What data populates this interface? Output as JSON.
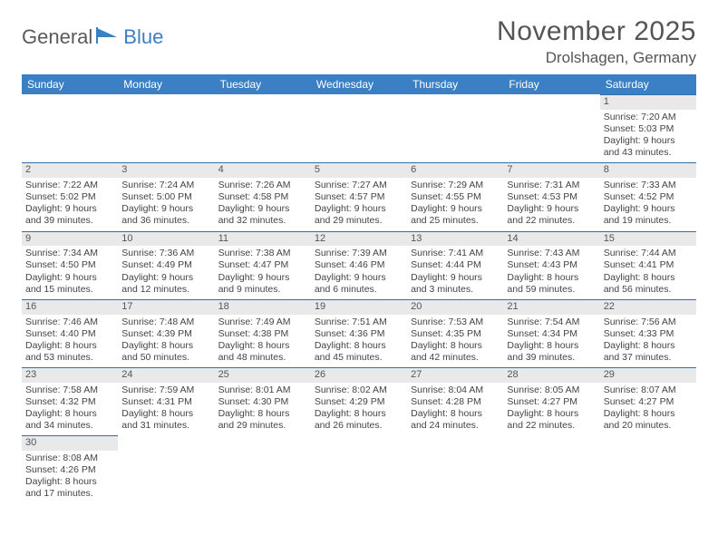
{
  "logo": {
    "text1": "General",
    "text2": "Blue"
  },
  "header": {
    "monthTitle": "November 2025",
    "location": "Drolshagen, Germany"
  },
  "colors": {
    "headerBg": "#3b7fc4",
    "headerText": "#ffffff",
    "dayBarBg": "#e9e9e9",
    "dayBarBorder": "#2f6fb0",
    "bodyText": "#444444",
    "pageBg": "#ffffff"
  },
  "dayNames": [
    "Sunday",
    "Monday",
    "Tuesday",
    "Wednesday",
    "Thursday",
    "Friday",
    "Saturday"
  ],
  "weeks": [
    [
      null,
      null,
      null,
      null,
      null,
      null,
      {
        "n": "1",
        "sr": "Sunrise: 7:20 AM",
        "ss": "Sunset: 5:03 PM",
        "d1": "Daylight: 9 hours",
        "d2": "and 43 minutes."
      }
    ],
    [
      {
        "n": "2",
        "sr": "Sunrise: 7:22 AM",
        "ss": "Sunset: 5:02 PM",
        "d1": "Daylight: 9 hours",
        "d2": "and 39 minutes."
      },
      {
        "n": "3",
        "sr": "Sunrise: 7:24 AM",
        "ss": "Sunset: 5:00 PM",
        "d1": "Daylight: 9 hours",
        "d2": "and 36 minutes."
      },
      {
        "n": "4",
        "sr": "Sunrise: 7:26 AM",
        "ss": "Sunset: 4:58 PM",
        "d1": "Daylight: 9 hours",
        "d2": "and 32 minutes."
      },
      {
        "n": "5",
        "sr": "Sunrise: 7:27 AM",
        "ss": "Sunset: 4:57 PM",
        "d1": "Daylight: 9 hours",
        "d2": "and 29 minutes."
      },
      {
        "n": "6",
        "sr": "Sunrise: 7:29 AM",
        "ss": "Sunset: 4:55 PM",
        "d1": "Daylight: 9 hours",
        "d2": "and 25 minutes."
      },
      {
        "n": "7",
        "sr": "Sunrise: 7:31 AM",
        "ss": "Sunset: 4:53 PM",
        "d1": "Daylight: 9 hours",
        "d2": "and 22 minutes."
      },
      {
        "n": "8",
        "sr": "Sunrise: 7:33 AM",
        "ss": "Sunset: 4:52 PM",
        "d1": "Daylight: 9 hours",
        "d2": "and 19 minutes."
      }
    ],
    [
      {
        "n": "9",
        "sr": "Sunrise: 7:34 AM",
        "ss": "Sunset: 4:50 PM",
        "d1": "Daylight: 9 hours",
        "d2": "and 15 minutes."
      },
      {
        "n": "10",
        "sr": "Sunrise: 7:36 AM",
        "ss": "Sunset: 4:49 PM",
        "d1": "Daylight: 9 hours",
        "d2": "and 12 minutes."
      },
      {
        "n": "11",
        "sr": "Sunrise: 7:38 AM",
        "ss": "Sunset: 4:47 PM",
        "d1": "Daylight: 9 hours",
        "d2": "and 9 minutes."
      },
      {
        "n": "12",
        "sr": "Sunrise: 7:39 AM",
        "ss": "Sunset: 4:46 PM",
        "d1": "Daylight: 9 hours",
        "d2": "and 6 minutes."
      },
      {
        "n": "13",
        "sr": "Sunrise: 7:41 AM",
        "ss": "Sunset: 4:44 PM",
        "d1": "Daylight: 9 hours",
        "d2": "and 3 minutes."
      },
      {
        "n": "14",
        "sr": "Sunrise: 7:43 AM",
        "ss": "Sunset: 4:43 PM",
        "d1": "Daylight: 8 hours",
        "d2": "and 59 minutes."
      },
      {
        "n": "15",
        "sr": "Sunrise: 7:44 AM",
        "ss": "Sunset: 4:41 PM",
        "d1": "Daylight: 8 hours",
        "d2": "and 56 minutes."
      }
    ],
    [
      {
        "n": "16",
        "sr": "Sunrise: 7:46 AM",
        "ss": "Sunset: 4:40 PM",
        "d1": "Daylight: 8 hours",
        "d2": "and 53 minutes."
      },
      {
        "n": "17",
        "sr": "Sunrise: 7:48 AM",
        "ss": "Sunset: 4:39 PM",
        "d1": "Daylight: 8 hours",
        "d2": "and 50 minutes."
      },
      {
        "n": "18",
        "sr": "Sunrise: 7:49 AM",
        "ss": "Sunset: 4:38 PM",
        "d1": "Daylight: 8 hours",
        "d2": "and 48 minutes."
      },
      {
        "n": "19",
        "sr": "Sunrise: 7:51 AM",
        "ss": "Sunset: 4:36 PM",
        "d1": "Daylight: 8 hours",
        "d2": "and 45 minutes."
      },
      {
        "n": "20",
        "sr": "Sunrise: 7:53 AM",
        "ss": "Sunset: 4:35 PM",
        "d1": "Daylight: 8 hours",
        "d2": "and 42 minutes."
      },
      {
        "n": "21",
        "sr": "Sunrise: 7:54 AM",
        "ss": "Sunset: 4:34 PM",
        "d1": "Daylight: 8 hours",
        "d2": "and 39 minutes."
      },
      {
        "n": "22",
        "sr": "Sunrise: 7:56 AM",
        "ss": "Sunset: 4:33 PM",
        "d1": "Daylight: 8 hours",
        "d2": "and 37 minutes."
      }
    ],
    [
      {
        "n": "23",
        "sr": "Sunrise: 7:58 AM",
        "ss": "Sunset: 4:32 PM",
        "d1": "Daylight: 8 hours",
        "d2": "and 34 minutes."
      },
      {
        "n": "24",
        "sr": "Sunrise: 7:59 AM",
        "ss": "Sunset: 4:31 PM",
        "d1": "Daylight: 8 hours",
        "d2": "and 31 minutes."
      },
      {
        "n": "25",
        "sr": "Sunrise: 8:01 AM",
        "ss": "Sunset: 4:30 PM",
        "d1": "Daylight: 8 hours",
        "d2": "and 29 minutes."
      },
      {
        "n": "26",
        "sr": "Sunrise: 8:02 AM",
        "ss": "Sunset: 4:29 PM",
        "d1": "Daylight: 8 hours",
        "d2": "and 26 minutes."
      },
      {
        "n": "27",
        "sr": "Sunrise: 8:04 AM",
        "ss": "Sunset: 4:28 PM",
        "d1": "Daylight: 8 hours",
        "d2": "and 24 minutes."
      },
      {
        "n": "28",
        "sr": "Sunrise: 8:05 AM",
        "ss": "Sunset: 4:27 PM",
        "d1": "Daylight: 8 hours",
        "d2": "and 22 minutes."
      },
      {
        "n": "29",
        "sr": "Sunrise: 8:07 AM",
        "ss": "Sunset: 4:27 PM",
        "d1": "Daylight: 8 hours",
        "d2": "and 20 minutes."
      }
    ],
    [
      {
        "n": "30",
        "sr": "Sunrise: 8:08 AM",
        "ss": "Sunset: 4:26 PM",
        "d1": "Daylight: 8 hours",
        "d2": "and 17 minutes."
      },
      null,
      null,
      null,
      null,
      null,
      null
    ]
  ]
}
